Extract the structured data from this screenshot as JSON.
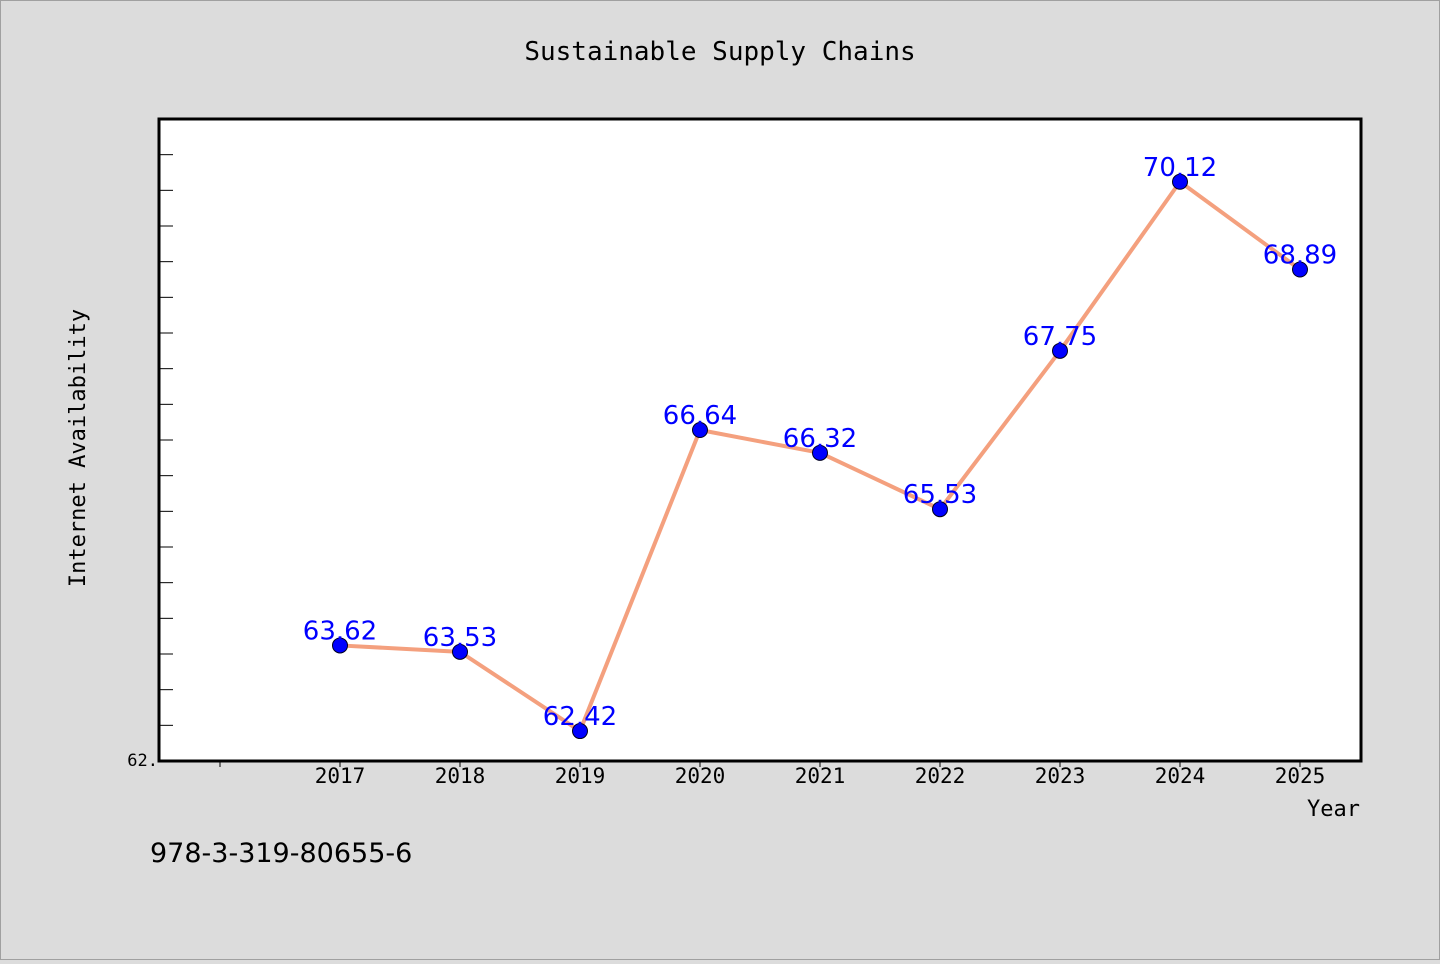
{
  "chart_data": {
    "type": "line",
    "title": "Sustainable Supply Chains",
    "xlabel": "Year",
    "ylabel": "Internet Availability",
    "categories": [
      "2017",
      "2018",
      "2019",
      "2020",
      "2021",
      "2022",
      "2023",
      "2024",
      "2025"
    ],
    "series": [
      {
        "values": [
          63.62,
          63.53,
          62.42,
          66.64,
          66.32,
          65.53,
          67.75,
          70.12,
          68.89
        ]
      }
    ],
    "y_tick_label": "62.",
    "ylim": [
      62.0,
      71.0
    ],
    "grid": false,
    "line_color": "#f4a07e",
    "marker_color": "#0000ff",
    "label_color": "#0000ff",
    "plot_background": "#ffffff",
    "page_background": "#dcdcdc"
  },
  "footer": {
    "isbn": "978-3-319-80655-6"
  }
}
